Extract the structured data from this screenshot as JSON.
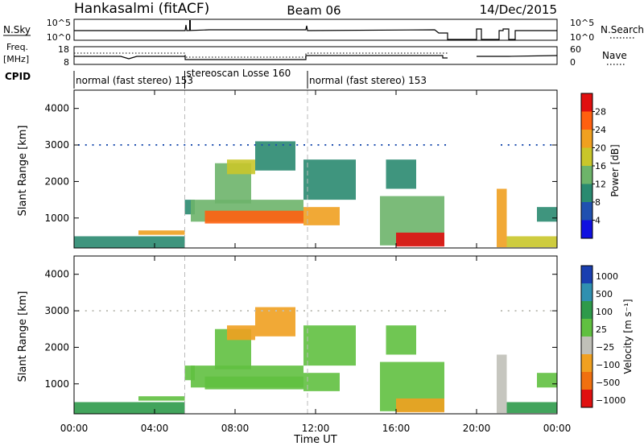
{
  "chart_data": {
    "type": "heatmap",
    "header": {
      "left": "Hankasalmi (fitACF)",
      "center": "Beam 06",
      "right": "14/Dec/2015"
    },
    "top_panels": {
      "nsky": {
        "label": "N.Sky",
        "left_ticks": [
          "10^5",
          "10^0"
        ],
        "right_ticks": [
          "10^5",
          "10^0"
        ],
        "right_label": "N.Search"
      },
      "freq": {
        "label_line1": "Freq.",
        "label_line2": "[MHz]",
        "left_ticks": [
          "18",
          "8"
        ],
        "right_ticks": [
          "60",
          "0"
        ],
        "right_label": "Nave"
      },
      "cpid": {
        "label": "CPID",
        "segments": [
          {
            "start": 0,
            "end": 5.5,
            "text": "normal (fast stereo) 153"
          },
          {
            "start": 5.5,
            "end": 11.6,
            "text": "stereoscan Losse 160"
          },
          {
            "start": 11.6,
            "end": 24,
            "text": "normal (fast stereo) 153"
          }
        ]
      }
    },
    "x_axis": {
      "label": "Time UT",
      "range": [
        0,
        24
      ],
      "ticks": [
        "00:00",
        "04:00",
        "08:00",
        "12:00",
        "16:00",
        "20:00",
        "00:00"
      ],
      "tick_values": [
        0,
        4,
        8,
        12,
        16,
        20,
        24
      ]
    },
    "y_axis": {
      "label": "Slant Range [km]",
      "range": [
        180,
        4500
      ],
      "ticks": [
        "1000",
        "2000",
        "3000",
        "4000"
      ],
      "tick_values": [
        1000,
        2000,
        3000,
        4000
      ]
    },
    "power_scale": {
      "label": "Power [dB]",
      "range": [
        0,
        32
      ],
      "ticks": [
        "4",
        "8",
        "12",
        "16",
        "20",
        "24",
        "28"
      ],
      "tick_values": [
        4,
        8,
        12,
        16,
        20,
        24,
        28
      ],
      "colors": [
        "#1010e0",
        "#2050b0",
        "#2a8a70",
        "#6db46a",
        "#c9c62a",
        "#f0a020",
        "#ff6010",
        "#e01010"
      ]
    },
    "velocity_scale": {
      "label": "Velocity [m s⁻¹]",
      "ticks": [
        "1000",
        "500",
        "100",
        "25",
        "−25",
        "−100",
        "−500",
        "−1000"
      ],
      "colors": [
        "#1a3fb0",
        "#3090b0",
        "#2e9a4a",
        "#60c040",
        "#c0c0b8",
        "#f0a020",
        "#f07010",
        "#e01010"
      ]
    },
    "regions": [
      {
        "t0": 0.0,
        "t1": 5.5,
        "r0": 180,
        "r1": 500,
        "p": 9,
        "v": 40
      },
      {
        "t0": 3.2,
        "t1": 5.5,
        "r0": 540,
        "r1": 660,
        "p": 22,
        "v": 10
      },
      {
        "t0": 5.5,
        "t1": 6.0,
        "r0": 1100,
        "r1": 1500,
        "p": 10,
        "v": 0
      },
      {
        "t0": 5.8,
        "t1": 11.4,
        "r0": 900,
        "r1": 1500,
        "p": 12,
        "v": 0
      },
      {
        "t0": 6.5,
        "t1": 11.4,
        "r0": 850,
        "r1": 1200,
        "p": 27,
        "v": 0
      },
      {
        "t0": 7.0,
        "t1": 8.8,
        "r0": 1400,
        "r1": 2500,
        "p": 14,
        "v": 0
      },
      {
        "t0": 7.6,
        "t1": 9.0,
        "r0": 2200,
        "r1": 2600,
        "p": 18,
        "v": -200
      },
      {
        "t0": 9.0,
        "t1": 11.0,
        "r0": 2300,
        "r1": 3100,
        "p": 8,
        "v": -150
      },
      {
        "t0": 11.4,
        "t1": 13.2,
        "r0": 800,
        "r1": 1300,
        "p": 20,
        "v": 0
      },
      {
        "t0": 11.4,
        "t1": 14.0,
        "r0": 1500,
        "r1": 2600,
        "p": 8,
        "v": 0
      },
      {
        "t0": 15.2,
        "t1": 18.4,
        "r0": 250,
        "r1": 1600,
        "p": 14,
        "v": -20
      },
      {
        "t0": 16.0,
        "t1": 18.4,
        "r0": 220,
        "r1": 600,
        "p": 28,
        "v": -300
      },
      {
        "t0": 15.5,
        "t1": 17.0,
        "r0": 1800,
        "r1": 2600,
        "p": 8,
        "v": 10
      },
      {
        "t0": 21.0,
        "t1": 21.5,
        "r0": 200,
        "r1": 1800,
        "p": 20,
        "v": -100
      },
      {
        "t0": 21.5,
        "t1": 24.0,
        "r0": 200,
        "r1": 500,
        "p": 18,
        "v": 40
      },
      {
        "t0": 23.0,
        "t1": 24.0,
        "r0": 900,
        "r1": 1300,
        "p": 8,
        "v": 10
      }
    ]
  }
}
